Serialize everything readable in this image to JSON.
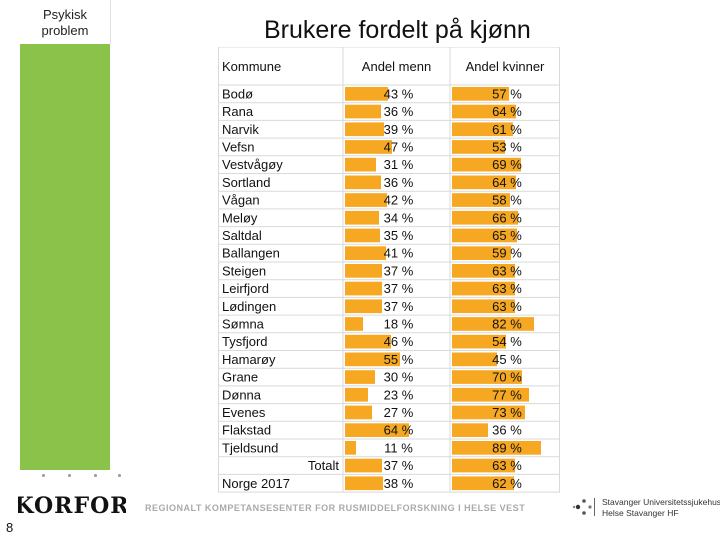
{
  "sidebar": {
    "label": "Psykisk problem"
  },
  "slide": {
    "title": "Brukere fordelt på kjønn",
    "page_number": "8"
  },
  "footer": {
    "org_text": "REGIONALT KOMPETANSESENTER FOR RUSMIDDELFORSKNING I HELSE VEST",
    "logo_text": "KORFOR",
    "hospital_line1": "Stavanger Universitetssjukehus",
    "hospital_line2": "Helse Stavanger HF"
  },
  "colors": {
    "accent_green": "#8bc34a",
    "bar_orange": "#f7a823",
    "grid": "#d9d9d9"
  },
  "chart_data": {
    "type": "table",
    "title": "Brukere fordelt på kjønn",
    "columns": [
      "Kommune",
      "Andel menn",
      "Andel kvinner"
    ],
    "rows": [
      {
        "name": "Bodø",
        "men": 43,
        "women": 57
      },
      {
        "name": "Rana",
        "men": 36,
        "women": 64
      },
      {
        "name": "Narvik",
        "men": 39,
        "women": 61
      },
      {
        "name": "Vefsn",
        "men": 47,
        "women": 53
      },
      {
        "name": "Vestvågøy",
        "men": 31,
        "women": 69
      },
      {
        "name": "Sortland",
        "men": 36,
        "women": 64
      },
      {
        "name": "Vågan",
        "men": 42,
        "women": 58
      },
      {
        "name": "Meløy",
        "men": 34,
        "women": 66
      },
      {
        "name": "Saltdal",
        "men": 35,
        "women": 65
      },
      {
        "name": "Ballangen",
        "men": 41,
        "women": 59
      },
      {
        "name": "Steigen",
        "men": 37,
        "women": 63
      },
      {
        "name": "Leirfjord",
        "men": 37,
        "women": 63
      },
      {
        "name": "Lødingen",
        "men": 37,
        "women": 63
      },
      {
        "name": "Sømna",
        "men": 18,
        "women": 82
      },
      {
        "name": "Tysfjord",
        "men": 46,
        "women": 54
      },
      {
        "name": "Hamarøy",
        "men": 55,
        "women": 45
      },
      {
        "name": "Grane",
        "men": 30,
        "women": 70
      },
      {
        "name": "Dønna",
        "men": 23,
        "women": 77
      },
      {
        "name": "Evenes",
        "men": 27,
        "women": 73
      },
      {
        "name": "Flakstad",
        "men": 64,
        "women": 36
      },
      {
        "name": "Tjeldsund",
        "men": 11,
        "women": 89
      }
    ],
    "summary_rows": [
      {
        "name": "Totalt",
        "men": 37,
        "women": 63,
        "align": "right"
      },
      {
        "name": "Norge 2017",
        "men": 38,
        "women": 62,
        "align": "left"
      }
    ],
    "unit": "%"
  }
}
